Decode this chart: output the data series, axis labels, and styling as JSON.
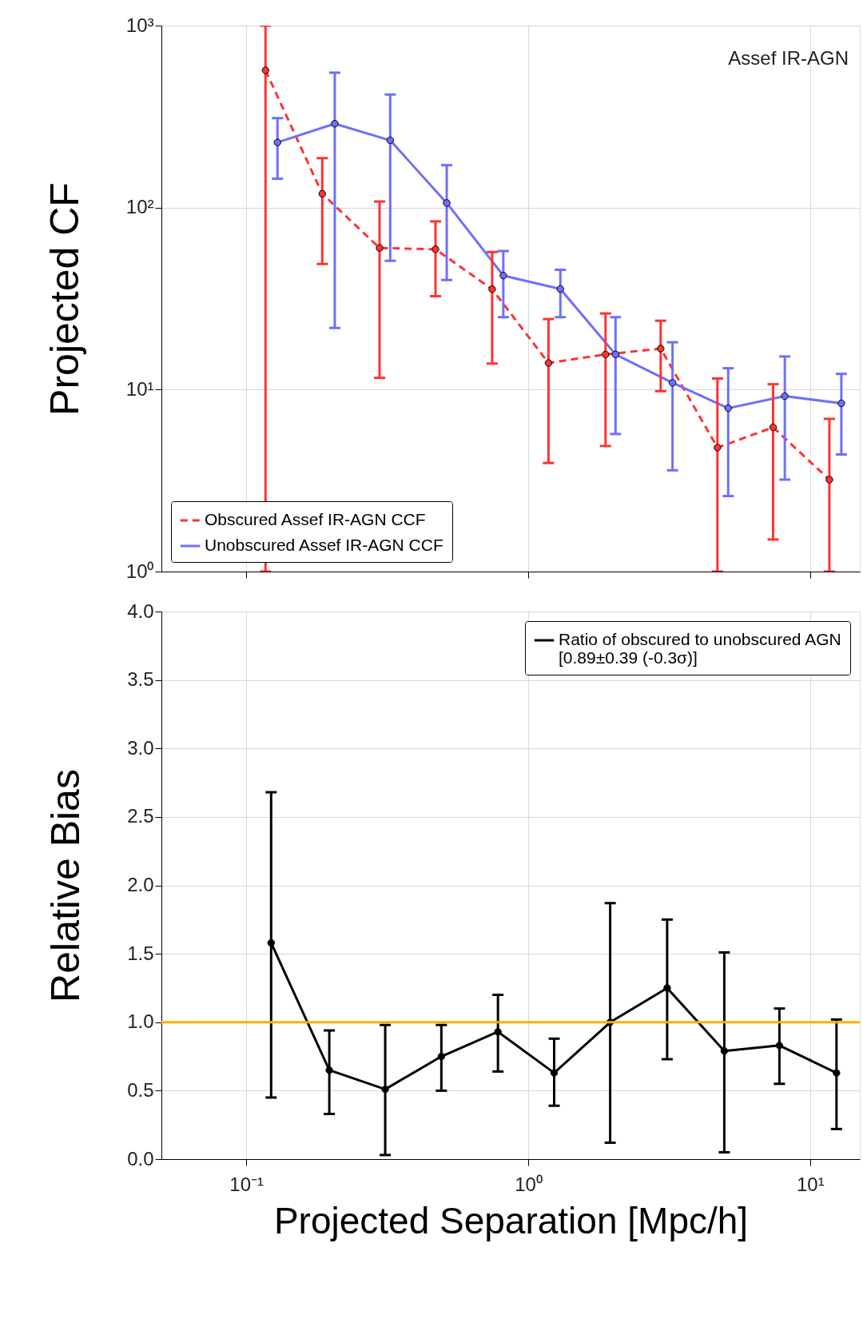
{
  "chart_data": [
    {
      "type": "line",
      "ylabel": "Projected CF",
      "log": "xy",
      "grid": true,
      "legend": "bottom left",
      "marker": "circle",
      "tick_labels": "y",
      "xlim": [
        0.05,
        15
      ],
      "xticks": [
        {
          "value": 0.1,
          "label": null
        },
        {
          "value": 1,
          "label": null
        },
        {
          "value": 10,
          "label": null
        }
      ],
      "ylim": [
        1,
        1000
      ],
      "yticks": [
        {
          "value": 1,
          "label": "10⁰"
        },
        {
          "value": 10,
          "label": "10¹"
        },
        {
          "value": 100,
          "label": "10²"
        },
        {
          "value": 1000,
          "label": "10³"
        }
      ],
      "annotations": [
        "Assef IR-AGN"
      ],
      "series": [
        {
          "name": "Obscured Assef IR-AGN CCF",
          "color": "#ff3333",
          "line_style": "dashed",
          "x": [
            0.117,
            0.186,
            0.297,
            0.469,
            0.745,
            1.18,
            1.88,
            2.95,
            4.69,
            7.39,
            11.7
          ],
          "values": [
            568,
            119,
            60,
            59,
            35.6,
            14.0,
            15.6,
            16.8,
            4.8,
            6.2,
            3.2
          ],
          "errors": [
            [
              1,
              1000
            ],
            [
              49,
              187
            ],
            [
              11.6,
              108
            ],
            [
              32.6,
              84
            ],
            [
              13.9,
              57
            ],
            [
              3.95,
              24.4
            ],
            [
              4.9,
              26.2
            ],
            [
              9.8,
              23.9
            ],
            [
              1,
              11.5
            ],
            [
              1.5,
              10.7
            ],
            [
              1,
              6.9
            ]
          ]
        },
        {
          "name": "Unobscured Assef IR-AGN CCF",
          "color": "#6f6fff",
          "line_style": "solid",
          "x": [
            0.129,
            0.206,
            0.324,
            0.514,
            0.816,
            1.3,
            2.04,
            3.25,
            5.12,
            8.13,
            12.9
          ],
          "values": [
            228,
            289,
            234,
            106,
            42.3,
            35.7,
            15.6,
            10.9,
            7.9,
            9.2,
            8.4
          ],
          "errors": [
            [
              144,
              310
            ],
            [
              21.8,
              551
            ],
            [
              51,
              418
            ],
            [
              40,
              171
            ],
            [
              25,
              57.7
            ],
            [
              25,
              45.5
            ],
            [
              5.7,
              25
            ],
            [
              3.6,
              18.2
            ],
            [
              2.6,
              13.1
            ],
            [
              3.2,
              15.2
            ],
            [
              4.4,
              12.2
            ]
          ]
        }
      ]
    },
    {
      "type": "line",
      "xlabel": "Projected Separation [Mpc/h]",
      "ylabel": "Relative Bias",
      "log": "x",
      "grid": true,
      "legend": "top right",
      "marker": "circle",
      "xlim": [
        0.05,
        15
      ],
      "xticks": [
        {
          "value": 0.1,
          "label": "10⁻¹"
        },
        {
          "value": 1,
          "label": "10⁰"
        },
        {
          "value": 10,
          "label": "10¹"
        }
      ],
      "ylim": [
        0,
        4
      ],
      "yticks": [
        {
          "value": 0,
          "label": "0.0"
        },
        {
          "value": 0.5,
          "label": "0.5"
        },
        {
          "value": 1,
          "label": "1.0"
        },
        {
          "value": 1.5,
          "label": "1.5"
        },
        {
          "value": 2,
          "label": "2.0"
        },
        {
          "value": 2.5,
          "label": "2.5"
        },
        {
          "value": 3,
          "label": "3.0"
        },
        {
          "value": 3.5,
          "label": "3.5"
        },
        {
          "value": 4,
          "label": "4.0"
        }
      ],
      "ref_lines": [
        {
          "axis": "y",
          "value": 1,
          "color": "#ffb000"
        }
      ],
      "series": [
        {
          "name": "Ratio of obscured to unobscured AGN\n[0.89±0.39 (-0.3σ)]",
          "color": "#000000",
          "line_style": "solid",
          "x": [
            0.1225,
            0.197,
            0.311,
            0.492,
            0.781,
            1.236,
            1.953,
            3.11,
            4.96,
            7.78,
            12.4
          ],
          "values": [
            1.58,
            0.65,
            0.51,
            0.75,
            0.93,
            0.63,
            1.0,
            1.25,
            0.79,
            0.83,
            0.63
          ],
          "errors": [
            [
              0.45,
              2.68
            ],
            [
              0.33,
              0.94
            ],
            [
              0.03,
              0.98
            ],
            [
              0.5,
              0.98
            ],
            [
              0.64,
              1.2
            ],
            [
              0.39,
              0.88
            ],
            [
              0.12,
              1.87
            ],
            [
              0.73,
              1.75
            ],
            [
              0.05,
              1.51
            ],
            [
              0.55,
              1.1
            ],
            [
              0.22,
              1.02
            ]
          ]
        }
      ]
    }
  ]
}
